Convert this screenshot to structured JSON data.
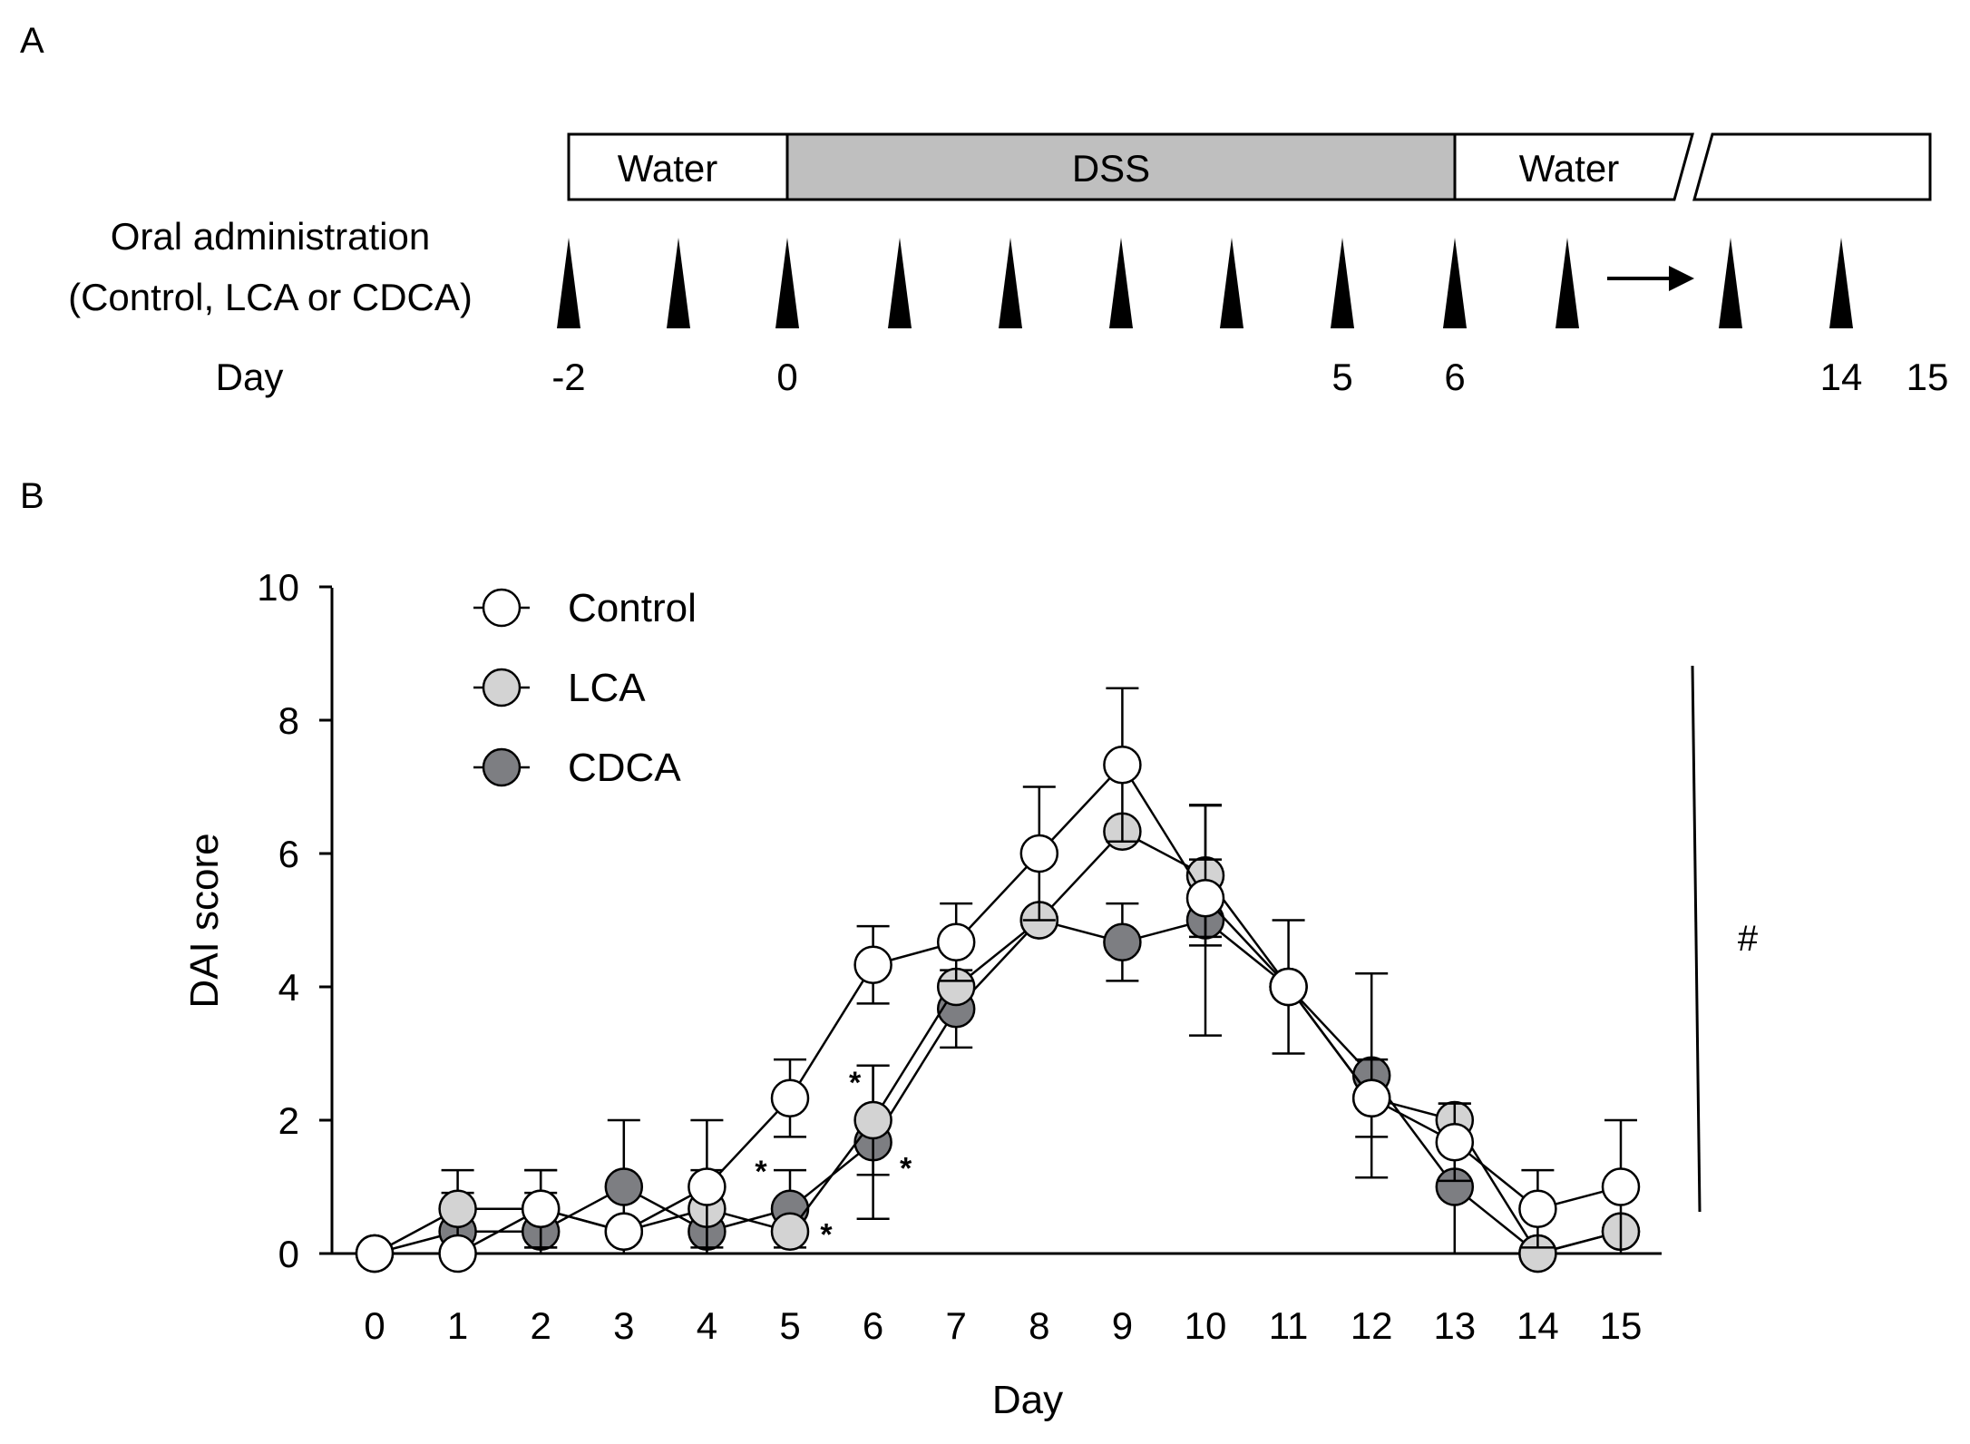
{
  "panel_a": {
    "label": "A",
    "bars": {
      "water_before": "Water",
      "dss": "DSS",
      "water_after": "Water"
    },
    "admin_line1": "Oral administration",
    "admin_line2": "(Control, LCA or CDCA)",
    "day_label": "Day",
    "days": [
      "-2",
      "0",
      "5",
      "6",
      "14",
      "15"
    ]
  },
  "panel_b": {
    "label": "B",
    "significance_marker": "#"
  },
  "colors": {
    "control": "#ffffff",
    "lca": "#d3d3d3",
    "cdca": "#7d7e82",
    "dss": "#bfbfbf",
    "ink": "#000000"
  },
  "chart_data": {
    "type": "line",
    "title": "",
    "xlabel": "Day",
    "ylabel": "DAI score",
    "xlim": [
      0,
      15
    ],
    "ylim": [
      0,
      10
    ],
    "x": [
      0,
      1,
      2,
      3,
      4,
      5,
      6,
      7,
      8,
      9,
      10,
      11,
      12,
      13,
      14,
      15
    ],
    "yticks": [
      0,
      2,
      4,
      6,
      8,
      10
    ],
    "series": [
      {
        "name": "Control",
        "values": [
          0,
          0,
          0.67,
          0.33,
          1.0,
          2.33,
          4.33,
          4.67,
          6.0,
          7.33,
          5.33,
          4.0,
          2.33,
          1.67,
          0.67,
          1.0
        ],
        "errors": [
          0,
          0,
          0.58,
          0,
          1.0,
          0.58,
          0.58,
          0.58,
          1.0,
          1.15,
          0.58,
          1.0,
          0.58,
          0.58,
          0.58,
          1.0
        ]
      },
      {
        "name": "LCA",
        "values": [
          0,
          0.67,
          0.67,
          0.33,
          0.67,
          0.33,
          2.0,
          4.0,
          5.0,
          6.33,
          5.67,
          4.0,
          2.33,
          2.0,
          0,
          0.33
        ],
        "errors": [
          0,
          0.58,
          0.58,
          0,
          0.58,
          0,
          0.82,
          0,
          0,
          0,
          1.05,
          0,
          0,
          0.25,
          0,
          0
        ]
      },
      {
        "name": "CDCA",
        "values": [
          0,
          0.33,
          0.33,
          1.0,
          0.33,
          0.67,
          1.67,
          3.67,
          5.0,
          4.67,
          5.0,
          4.0,
          2.67,
          1.0,
          0,
          0.33
        ],
        "errors": [
          0,
          0.58,
          0.58,
          1.0,
          0.58,
          0.58,
          1.15,
          0.58,
          0,
          0.58,
          1.73,
          0,
          1.53,
          1.0,
          0,
          0
        ]
      }
    ],
    "annotations": [
      {
        "text": "*",
        "x": 5,
        "series": "CDCA"
      },
      {
        "text": "*",
        "x": 5,
        "series": "LCA"
      },
      {
        "text": "*",
        "x": 6,
        "series": "LCA"
      },
      {
        "text": "*",
        "x": 6,
        "series": "CDCA"
      }
    ],
    "legend": [
      "Control",
      "LCA",
      "CDCA"
    ],
    "legend_position": "top-left",
    "grid": false
  }
}
